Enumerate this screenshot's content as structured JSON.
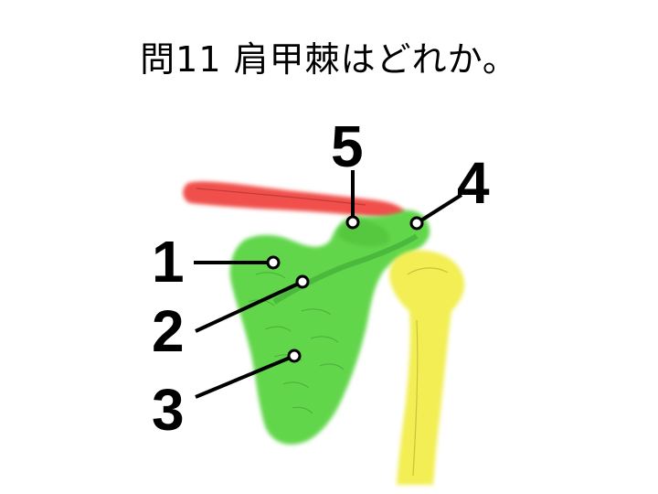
{
  "question": {
    "title": "問11 肩甲棘はどれか。"
  },
  "labels": [
    "1",
    "2",
    "3",
    "4",
    "5"
  ],
  "colors": {
    "clavicle": "#f0504c",
    "scapula": "#62d64c",
    "humerus": "#f2ee52",
    "background": "#ffffff",
    "text": "#000000"
  }
}
